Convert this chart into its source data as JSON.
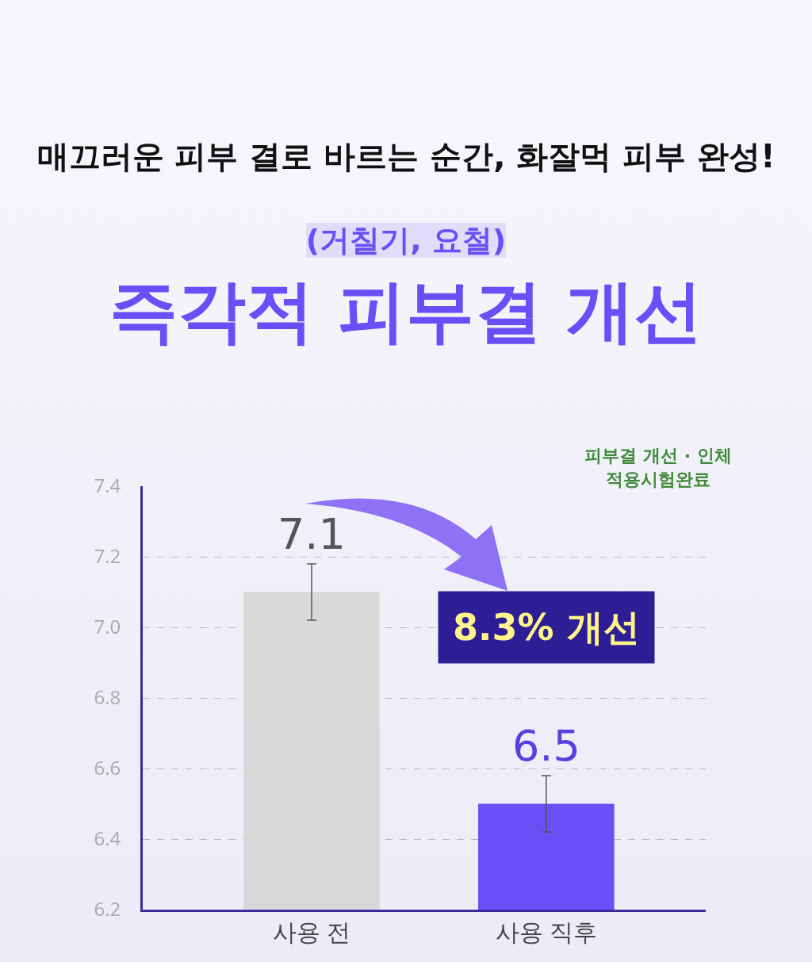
{
  "chart_data": {
    "type": "bar",
    "title": "즉각적 피부결 개선",
    "subtitle": "(거칠기, 요철)",
    "annotations": [
      "매끄러운 피부 결로 바르는 순간, 화잘먹 피부 완성!",
      "8.3% 개선",
      "피부결 개선 · 인체적용시험완료"
    ],
    "categories": [
      "사용 전",
      "사용 직후"
    ],
    "values": [
      7.1,
      6.5
    ],
    "colors": [
      "#d9d9d9",
      "#6b4ef5"
    ],
    "errors": [
      0.08,
      0.08
    ],
    "data_labels": true,
    "ylim": [
      6.2,
      7.4
    ],
    "yticks": [
      6.2,
      6.4,
      6.6,
      6.8,
      {
        "value": 7.0,
        "label": "7.0"
      },
      7.2,
      7.4
    ],
    "grid": "y"
  }
}
